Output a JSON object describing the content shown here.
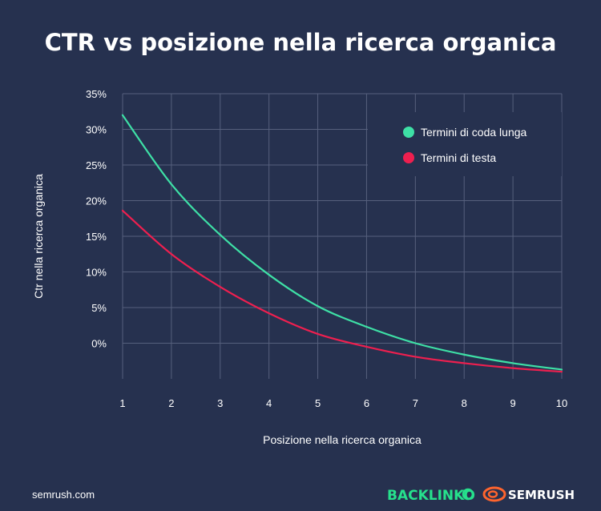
{
  "chart_data": {
    "type": "line",
    "title": "CTR vs posizione nella ricerca organica",
    "xlabel": "Posizione nella ricerca organica",
    "ylabel": "Ctr nella ricerca organica",
    "x": [
      1,
      2,
      3,
      4,
      5,
      6,
      7,
      8,
      9,
      10
    ],
    "x_tick_labels": [
      "1",
      "2",
      "3",
      "4",
      "5",
      "6",
      "7",
      "8",
      "9",
      "10"
    ],
    "y_ticks": [
      0,
      5,
      10,
      15,
      20,
      25,
      30,
      35
    ],
    "y_tick_labels": [
      "0%",
      "5%",
      "10%",
      "15%",
      "20%",
      "25%",
      "30%",
      "35%"
    ],
    "ylim": [
      -5,
      35
    ],
    "xlim": [
      1,
      10
    ],
    "grid": true,
    "legend_position": "top-right",
    "series": [
      {
        "name": "Termini di coda lunga",
        "color": "#3ee0a6",
        "values": [
          32.0,
          22.3,
          15.2,
          9.6,
          5.2,
          2.3,
          0.0,
          -1.6,
          -2.8,
          -3.7
        ]
      },
      {
        "name": "Termini di testa",
        "color": "#ee1f4f",
        "values": [
          18.6,
          12.5,
          7.9,
          4.2,
          1.3,
          -0.5,
          -1.9,
          -2.8,
          -3.5,
          -4.0
        ]
      }
    ]
  },
  "footer": {
    "source": "semrush.com",
    "brand_backlinko": "BACKLINKO",
    "brand_semrush": "SEMRUSH",
    "backlinko_color": "#26e18c",
    "semrush_icon_color": "#ff642d"
  }
}
